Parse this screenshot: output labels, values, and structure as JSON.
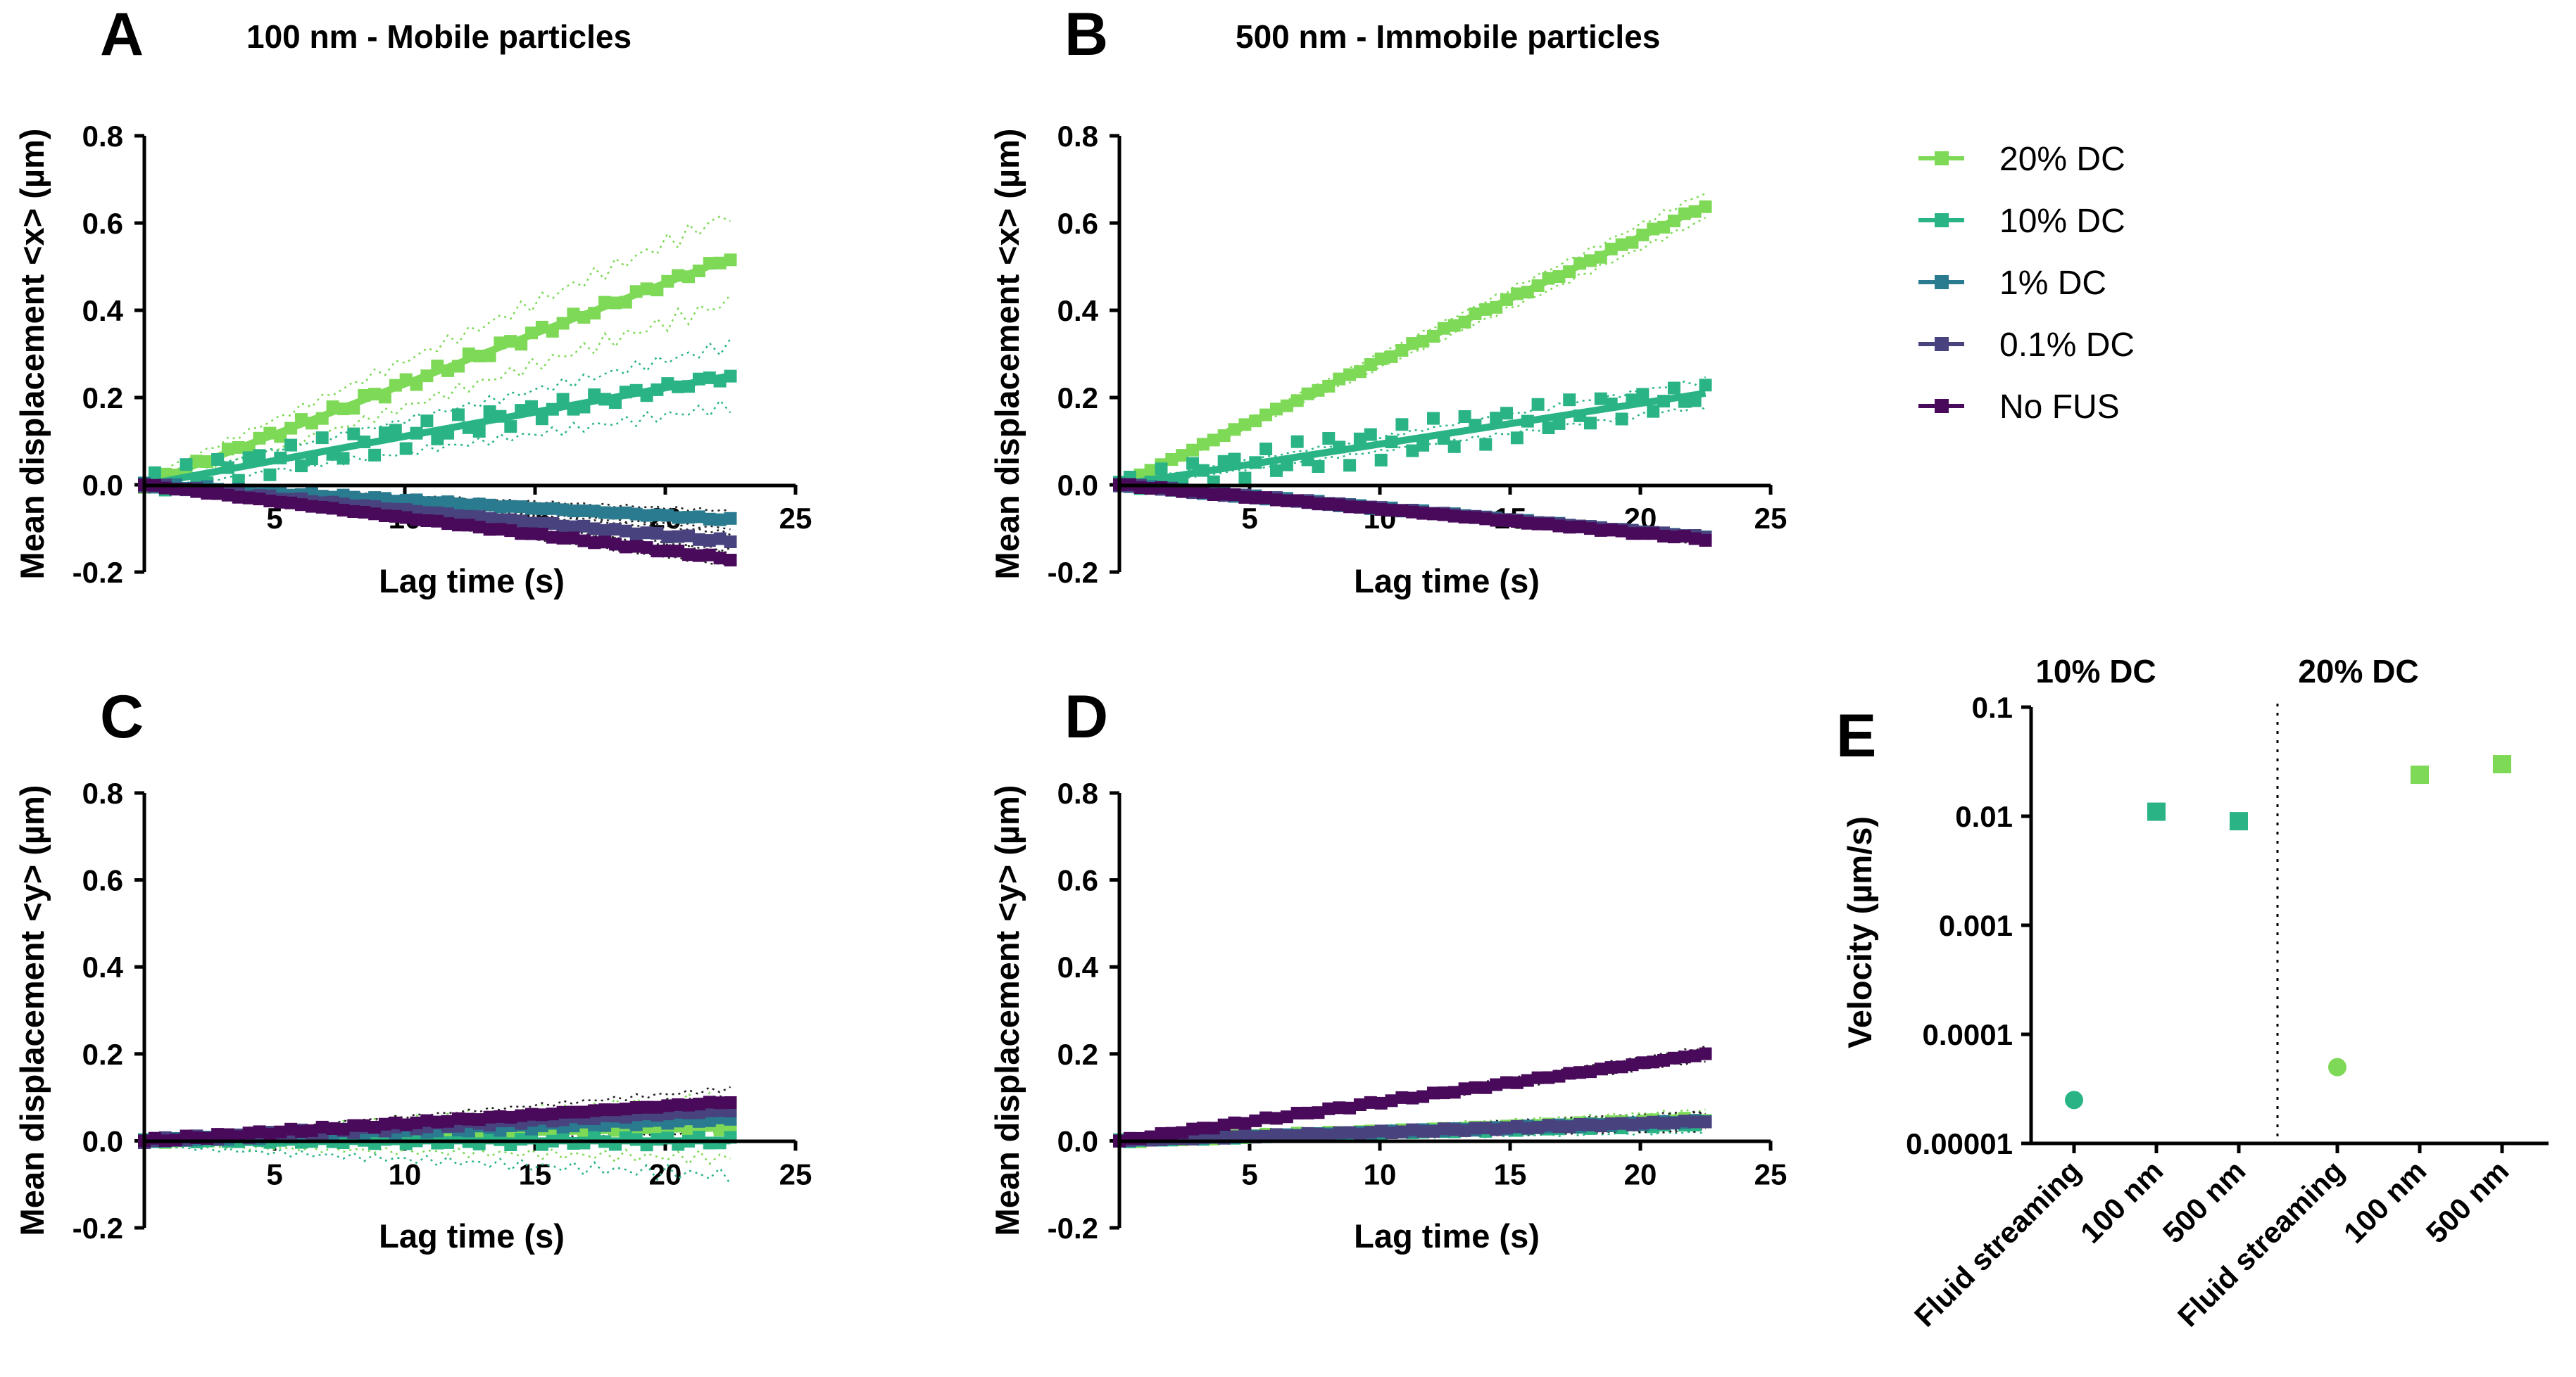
{
  "colors": {
    "20% DC": "#7ed957",
    "10% DC": "#2ab486",
    "1% DC": "#2a7b8f",
    "0.1% DC": "#48427f",
    "No FUS": "#4a0a5c"
  },
  "legend": [
    "20% DC",
    "10% DC",
    "1% DC",
    "0.1% DC",
    "No FUS"
  ],
  "chart_data": [
    {
      "panel": "A",
      "title": "100 nm - Mobile particles",
      "type": "scatter",
      "xlabel": "Lag time (s)",
      "ylabel": "Mean displacement <x> (µm)",
      "xlim": [
        0,
        25
      ],
      "ylim": [
        -0.2,
        0.8
      ],
      "xticks": [
        5,
        10,
        15,
        20,
        25
      ],
      "xtick_labels": [
        "5",
        "10",
        "15",
        "20",
        "25"
      ],
      "yticks": [
        -0.2,
        0,
        0.2,
        0.4,
        0.6,
        0.8
      ],
      "ytick_labels": [
        "-0.2",
        "0.0",
        "0.2",
        "0.4",
        "0.6",
        "0.8"
      ],
      "x_range": [
        0,
        22.5
      ],
      "series": [
        {
          "name": "20% DC",
          "end": 0.52,
          "noise": 0.008,
          "band": 0.1
        },
        {
          "name": "10% DC",
          "end": 0.25,
          "noise": 0.02,
          "band": 0.07
        },
        {
          "name": "1% DC",
          "end": -0.08,
          "noise": 0.003,
          "band": 0.02
        },
        {
          "name": "0.1% DC",
          "end": -0.13,
          "noise": 0.003,
          "band": 0.02
        },
        {
          "name": "No FUS",
          "end": -0.17,
          "noise": 0.002,
          "band": 0.015
        }
      ]
    },
    {
      "panel": "B",
      "title": "500 nm - Immobile particles",
      "type": "scatter",
      "xlabel": "Lag time (s)",
      "ylabel": "Mean displacement <x> (µm)",
      "xlim": [
        0,
        25
      ],
      "ylim": [
        -0.2,
        0.8
      ],
      "xticks": [
        5,
        10,
        15,
        20,
        25
      ],
      "xtick_labels": [
        "5",
        "10",
        "15",
        "20",
        "25"
      ],
      "yticks": [
        -0.2,
        0,
        0.2,
        0.4,
        0.6,
        0.8
      ],
      "ytick_labels": [
        "-0.2",
        "0.0",
        "0.2",
        "0.4",
        "0.6",
        "0.8"
      ],
      "x_range": [
        0,
        22.5
      ],
      "series": [
        {
          "name": "20% DC",
          "end": 0.64,
          "noise": 0.003,
          "band": 0.03
        },
        {
          "name": "10% DC",
          "end": 0.21,
          "noise": 0.025,
          "band": 0.03
        },
        {
          "name": "1% DC",
          "end": -0.12,
          "noise": 0.002,
          "band": 0.01
        },
        {
          "name": "0.1% DC",
          "end": -0.12,
          "noise": 0.002,
          "band": 0.01
        },
        {
          "name": "No FUS",
          "end": -0.125,
          "noise": 0.002,
          "band": 0.01
        }
      ]
    },
    {
      "panel": "C",
      "title": "",
      "type": "scatter",
      "xlabel": "Lag time (s)",
      "ylabel": "Mean displacement <y> (µm)",
      "xlim": [
        0,
        25
      ],
      "ylim": [
        -0.2,
        0.8
      ],
      "xticks": [
        5,
        10,
        15,
        20,
        25
      ],
      "xtick_labels": [
        "5",
        "10",
        "15",
        "20",
        "25"
      ],
      "yticks": [
        -0.2,
        0,
        0.2,
        0.4,
        0.6,
        0.8
      ],
      "ytick_labels": [
        "-0.2",
        "0.0",
        "0.2",
        "0.4",
        "0.6",
        "0.8"
      ],
      "x_range": [
        0,
        22.5
      ],
      "series": [
        {
          "name": "20% DC",
          "end": 0.03,
          "noise": 0.006,
          "band": 0.07
        },
        {
          "name": "10% DC",
          "end": 0.0,
          "noise": 0.006,
          "band": 0.08
        },
        {
          "name": "1% DC",
          "end": 0.05,
          "noise": 0.004,
          "band": 0.03
        },
        {
          "name": "0.1% DC",
          "end": 0.07,
          "noise": 0.004,
          "band": 0.03
        },
        {
          "name": "No FUS",
          "end": 0.09,
          "noise": 0.003,
          "band": 0.03
        }
      ]
    },
    {
      "panel": "D",
      "title": "",
      "type": "scatter",
      "xlabel": "Lag time (s)",
      "ylabel": "Mean displacement <y> (µm)",
      "xlim": [
        0,
        25
      ],
      "ylim": [
        -0.2,
        0.8
      ],
      "xticks": [
        5,
        10,
        15,
        20,
        25
      ],
      "xtick_labels": [
        "5",
        "10",
        "15",
        "20",
        "25"
      ],
      "yticks": [
        -0.2,
        0,
        0.2,
        0.4,
        0.6,
        0.8
      ],
      "ytick_labels": [
        "-0.2",
        "0.0",
        "0.2",
        "0.4",
        "0.6",
        "0.8"
      ],
      "x_range": [
        0,
        22.5
      ],
      "series": [
        {
          "name": "20% DC",
          "end": 0.05,
          "noise": 0.003,
          "band": 0.02
        },
        {
          "name": "10% DC",
          "end": 0.04,
          "noise": 0.003,
          "band": 0.02
        },
        {
          "name": "1% DC",
          "end": 0.045,
          "noise": 0.002,
          "band": 0.02
        },
        {
          "name": "0.1% DC",
          "end": 0.045,
          "noise": 0.002,
          "band": 0.02
        },
        {
          "name": "No FUS",
          "end": 0.2,
          "noise": 0.002,
          "band": 0.015
        }
      ]
    },
    {
      "panel": "E",
      "type": "scatter",
      "ylabel": "Velocity (µm/s)",
      "yscale": "log",
      "ylim": [
        1e-05,
        0.1
      ],
      "yticks": [
        1e-05,
        0.0001,
        0.001,
        0.01,
        0.1
      ],
      "ytick_labels": [
        "0.00001",
        "0.0001",
        "0.001",
        "0.01",
        "0.1"
      ],
      "groups": [
        "10% DC",
        "20% DC"
      ],
      "categories": [
        "Fluid streaming",
        "100 nm",
        "500 nm",
        "Fluid streaming",
        "100 nm",
        "500 nm"
      ],
      "points": [
        {
          "category": "Fluid streaming",
          "group": "10% DC",
          "value": 2.5e-05,
          "marker": "circle"
        },
        {
          "category": "100 nm",
          "group": "10% DC",
          "value": 0.011,
          "marker": "square"
        },
        {
          "category": "500 nm",
          "group": "10% DC",
          "value": 0.009,
          "marker": "square"
        },
        {
          "category": "Fluid streaming",
          "group": "20% DC",
          "value": 5e-05,
          "marker": "circle"
        },
        {
          "category": "100 nm",
          "group": "20% DC",
          "value": 0.024,
          "marker": "square"
        },
        {
          "category": "500 nm",
          "group": "20% DC",
          "value": 0.03,
          "marker": "square"
        }
      ]
    }
  ]
}
